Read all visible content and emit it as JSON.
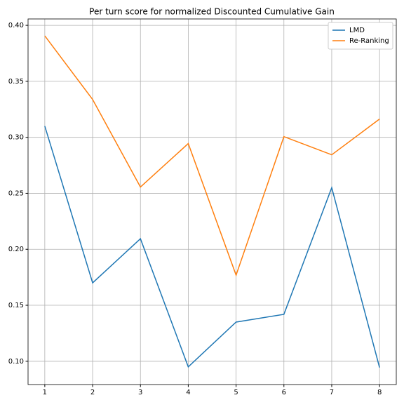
{
  "chart_data": {
    "type": "line",
    "title": "Per turn score for normalized Discounted Cumulative Gain",
    "x": [
      1,
      2,
      3,
      4,
      5,
      6,
      7,
      8
    ],
    "series": [
      {
        "name": "LMD",
        "color": "#1f77b4",
        "values": [
          0.31,
          0.17,
          0.2094,
          0.095,
          0.135,
          0.1419,
          0.255,
          0.0944
        ]
      },
      {
        "name": "Re-Ranking",
        "color": "#ff7f0e",
        "values": [
          0.3906,
          0.3338,
          0.2556,
          0.2944,
          0.1769,
          0.3006,
          0.2844,
          0.3163
        ]
      }
    ],
    "xlim": [
      0.65,
      8.35
    ],
    "xticks": [
      1,
      2,
      3,
      4,
      5,
      6,
      7,
      8
    ],
    "ylim": [
      0.0792,
      0.4057
    ],
    "yticks": [
      {
        "value": 0.1,
        "label": "0.10"
      },
      0.15,
      {
        "value": 0.2,
        "label": "0.20"
      },
      0.25,
      {
        "value": 0.3,
        "label": "0.30"
      },
      0.35,
      {
        "value": 0.4,
        "label": "0.40"
      }
    ],
    "grid": true,
    "legend": "upper right"
  }
}
